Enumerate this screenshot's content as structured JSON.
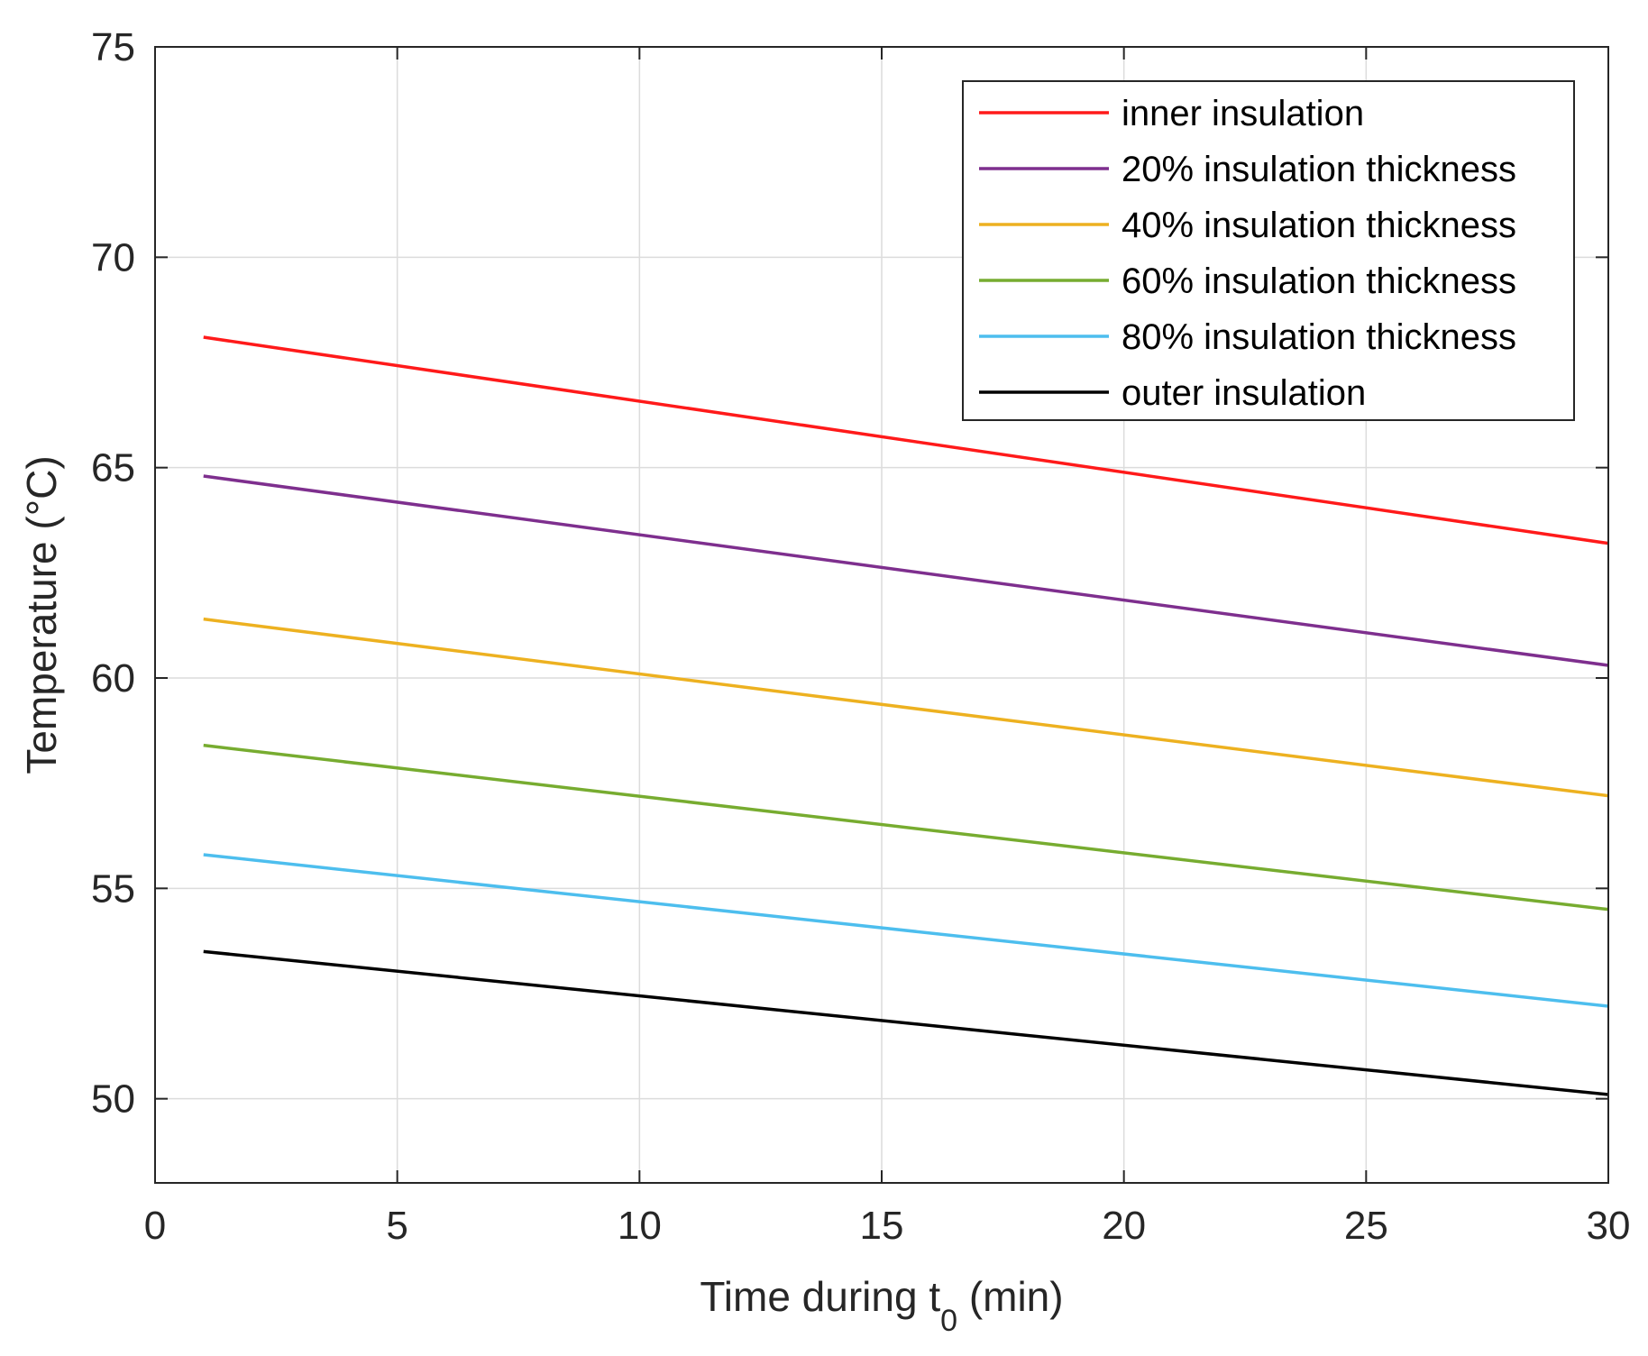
{
  "chart_data": {
    "type": "line",
    "title": "",
    "xlabel": "Time during t",
    "xlabel_subscript": "0",
    "xlabel_suffix": " (min)",
    "ylabel": "Temperature (°C)",
    "xlim": [
      0,
      30
    ],
    "ylim": [
      48,
      75
    ],
    "xticks": [
      0,
      5,
      10,
      15,
      20,
      25,
      30
    ],
    "yticks": [
      50,
      55,
      60,
      65,
      70,
      75
    ],
    "grid": true,
    "legend_position": "top-right",
    "x": [
      1,
      30
    ],
    "series": [
      {
        "name": "inner insulation",
        "color": "#ff1a1a",
        "values": [
          68.1,
          63.2
        ]
      },
      {
        "name": "20% insulation thickness",
        "color": "#7e2f8e",
        "values": [
          64.8,
          60.3
        ]
      },
      {
        "name": "40% insulation thickness",
        "color": "#edb120",
        "values": [
          61.4,
          57.2
        ]
      },
      {
        "name": "60% insulation thickness",
        "color": "#77ac30",
        "values": [
          58.4,
          54.5
        ]
      },
      {
        "name": "80% insulation thickness",
        "color": "#4dbeee",
        "values": [
          55.8,
          52.2
        ]
      },
      {
        "name": "outer insulation",
        "color": "#000000",
        "values": [
          53.5,
          50.1
        ]
      }
    ]
  }
}
